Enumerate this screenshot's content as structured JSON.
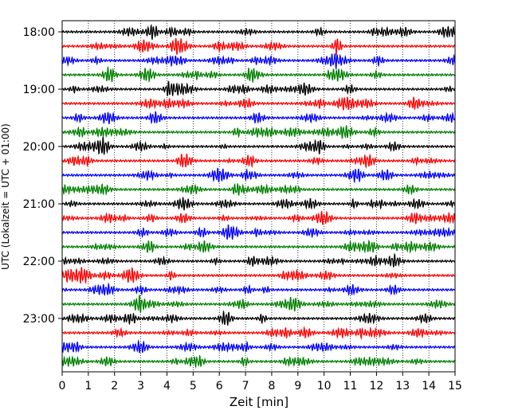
{
  "chart_data": {
    "type": "line",
    "title": "",
    "xlabel": "Zeit  [min]",
    "ylabel": "UTC (Lokalzeit = UTC + 01:00)",
    "xlim": [
      0,
      15
    ],
    "x_ticks": [
      "0",
      "1",
      "2",
      "3",
      "4",
      "5",
      "6",
      "7",
      "8",
      "9",
      "10",
      "11",
      "12",
      "13",
      "14",
      "15"
    ],
    "y_tick_labels": [
      "18:00",
      "19:00",
      "20:00",
      "21:00",
      "22:00",
      "23:00"
    ],
    "y_tick_traces": [
      0,
      4,
      8,
      12,
      16,
      20
    ],
    "grid": "vertical dotted lines at every minute",
    "trace_colors": [
      "#000000",
      "#ff0000",
      "#0000ff",
      "#008000"
    ],
    "traces": [
      {
        "start": "18:00",
        "color": "#000000"
      },
      {
        "start": "18:15",
        "color": "#ff0000"
      },
      {
        "start": "18:30",
        "color": "#0000ff"
      },
      {
        "start": "18:45",
        "color": "#008000"
      },
      {
        "start": "19:00",
        "color": "#000000"
      },
      {
        "start": "19:15",
        "color": "#ff0000"
      },
      {
        "start": "19:30",
        "color": "#0000ff"
      },
      {
        "start": "19:45",
        "color": "#008000"
      },
      {
        "start": "20:00",
        "color": "#000000"
      },
      {
        "start": "20:15",
        "color": "#ff0000"
      },
      {
        "start": "20:30",
        "color": "#0000ff"
      },
      {
        "start": "20:45",
        "color": "#008000"
      },
      {
        "start": "21:00",
        "color": "#000000"
      },
      {
        "start": "21:15",
        "color": "#ff0000"
      },
      {
        "start": "21:30",
        "color": "#0000ff"
      },
      {
        "start": "21:45",
        "color": "#008000"
      },
      {
        "start": "22:00",
        "color": "#000000"
      },
      {
        "start": "22:15",
        "color": "#ff0000"
      },
      {
        "start": "22:30",
        "color": "#0000ff"
      },
      {
        "start": "22:45",
        "color": "#008000"
      },
      {
        "start": "23:00",
        "color": "#000000"
      },
      {
        "start": "23:15",
        "color": "#ff0000"
      },
      {
        "start": "23:30",
        "color": "#0000ff"
      },
      {
        "start": "23:45",
        "color": "#008000"
      }
    ]
  }
}
